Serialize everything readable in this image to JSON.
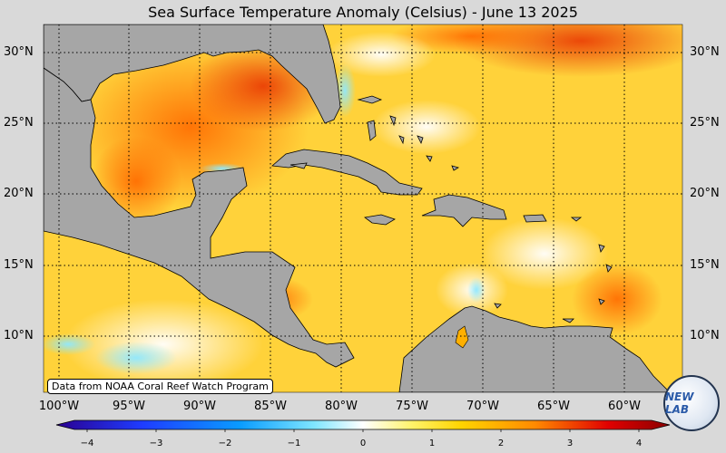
{
  "title": "Sea Surface Temperature Anomaly (Celsius) - June 13 2025",
  "map": {
    "lon_range": [
      -101,
      -57
    ],
    "lat_range": [
      6,
      32
    ],
    "lat_ticks": [
      "30°N",
      "25°N",
      "20°N",
      "15°N",
      "10°N"
    ],
    "lon_ticks": [
      "100°W",
      "95°W",
      "90°W",
      "85°W",
      "80°W",
      "75°W",
      "70°W",
      "65°W",
      "60°W"
    ],
    "land_color": "#a6a6a6",
    "gridlines": "dotted"
  },
  "credit": "Data from NOAA Coral Reef Watch Program",
  "colorbar": {
    "ticks": [
      "−4",
      "−3",
      "−2",
      "−1",
      "0",
      "1",
      "2",
      "3",
      "4"
    ],
    "range": [
      -4,
      4
    ],
    "colormap": [
      "#2a0090",
      "#0050ff",
      "#00c8ff",
      "#ffffff",
      "#fff000",
      "#ff8c00",
      "#e00000",
      "#8b0000"
    ]
  },
  "logo": {
    "text": "NEW LAB",
    "icon": "lab-logo-icon"
  }
}
